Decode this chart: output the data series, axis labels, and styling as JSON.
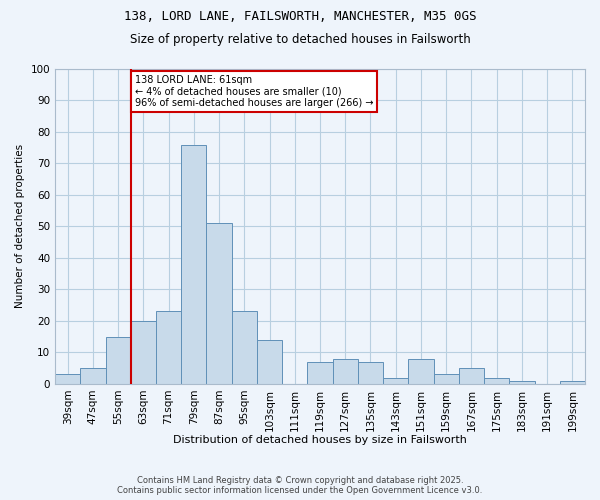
{
  "title_line1": "138, LORD LANE, FAILSWORTH, MANCHESTER, M35 0GS",
  "title_line2": "Size of property relative to detached houses in Failsworth",
  "xlabel": "Distribution of detached houses by size in Failsworth",
  "ylabel": "Number of detached properties",
  "footnote1": "Contains HM Land Registry data © Crown copyright and database right 2025.",
  "footnote2": "Contains public sector information licensed under the Open Government Licence v3.0.",
  "annotation_title": "138 LORD LANE: 61sqm",
  "annotation_line2": "← 4% of detached houses are smaller (10)",
  "annotation_line3": "96% of semi-detached houses are larger (266) →",
  "bar_color": "#c8daea",
  "bar_edge_color": "#6090b8",
  "grid_color": "#b8cfe0",
  "background_color": "#eef4fb",
  "vline_color": "#cc0000",
  "annotation_box_edgecolor": "#cc0000",
  "categories": [
    "39sqm",
    "47sqm",
    "55sqm",
    "63sqm",
    "71sqm",
    "79sqm",
    "87sqm",
    "95sqm",
    "103sqm",
    "111sqm",
    "119sqm",
    "127sqm",
    "135sqm",
    "143sqm",
    "151sqm",
    "159sqm",
    "167sqm",
    "175sqm",
    "183sqm",
    "191sqm",
    "199sqm"
  ],
  "values": [
    3,
    5,
    15,
    20,
    23,
    76,
    51,
    23,
    14,
    0,
    7,
    8,
    7,
    2,
    8,
    3,
    5,
    2,
    1,
    0,
    1
  ],
  "vline_x": 2.5,
  "ylim_max": 100,
  "yticks": [
    0,
    10,
    20,
    30,
    40,
    50,
    60,
    70,
    80,
    90,
    100
  ]
}
